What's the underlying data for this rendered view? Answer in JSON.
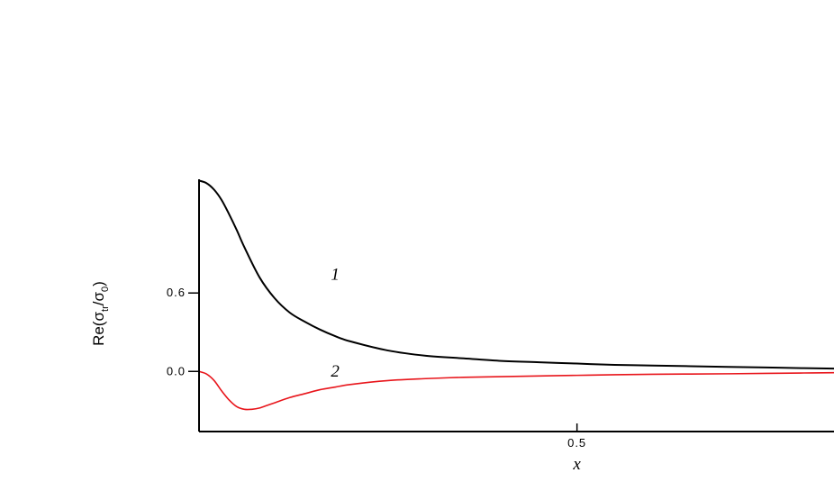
{
  "chart_data": {
    "type": "line",
    "title": "",
    "xlabel": "x",
    "ylabel": "Re(σtr/σ0)",
    "ylabel_parts": {
      "prefix": "Re(",
      "s1": "σ",
      "sub1": "tr",
      "slash": "/",
      "s2": "σ",
      "sub2": "0",
      "suffix": ")"
    },
    "xlim": [
      0,
      0.84
    ],
    "ylim": [
      -0.46,
      1.47
    ],
    "x_ticks": [
      {
        "value": 0.5,
        "label": "0.5"
      }
    ],
    "y_ticks": [
      {
        "value": 0.0,
        "label": "0.0"
      },
      {
        "value": 0.6,
        "label": "0.6"
      }
    ],
    "grid": false,
    "series": [
      {
        "label": "1",
        "label_at": [
          0.18,
          0.7
        ],
        "color": "#000000",
        "x": [
          0,
          0.01,
          0.02,
          0.03,
          0.04,
          0.05,
          0.06,
          0.08,
          0.1,
          0.12,
          0.14,
          0.16,
          0.18,
          0.2,
          0.25,
          0.3,
          0.35,
          0.4,
          0.45,
          0.5,
          0.55,
          0.6,
          0.65,
          0.7,
          0.75,
          0.8,
          0.84
        ],
        "y": [
          1.46,
          1.44,
          1.39,
          1.31,
          1.2,
          1.08,
          0.95,
          0.72,
          0.56,
          0.45,
          0.38,
          0.32,
          0.27,
          0.23,
          0.16,
          0.12,
          0.1,
          0.08,
          0.07,
          0.06,
          0.05,
          0.045,
          0.04,
          0.035,
          0.03,
          0.025,
          0.022
        ]
      },
      {
        "label": "2",
        "label_at": [
          0.18,
          -0.04
        ],
        "color": "#e8151b",
        "x": [
          0,
          0.01,
          0.02,
          0.03,
          0.04,
          0.05,
          0.06,
          0.07,
          0.08,
          0.09,
          0.1,
          0.12,
          0.14,
          0.16,
          0.18,
          0.2,
          0.25,
          0.3,
          0.35,
          0.4,
          0.45,
          0.5,
          0.55,
          0.6,
          0.65,
          0.7,
          0.75,
          0.8,
          0.84
        ],
        "y": [
          0,
          -0.02,
          -0.07,
          -0.15,
          -0.22,
          -0.27,
          -0.29,
          -0.29,
          -0.28,
          -0.26,
          -0.24,
          -0.2,
          -0.17,
          -0.14,
          -0.12,
          -0.1,
          -0.07,
          -0.055,
          -0.045,
          -0.04,
          -0.035,
          -0.03,
          -0.025,
          -0.022,
          -0.02,
          -0.018,
          -0.015,
          -0.012,
          -0.01
        ]
      }
    ]
  }
}
